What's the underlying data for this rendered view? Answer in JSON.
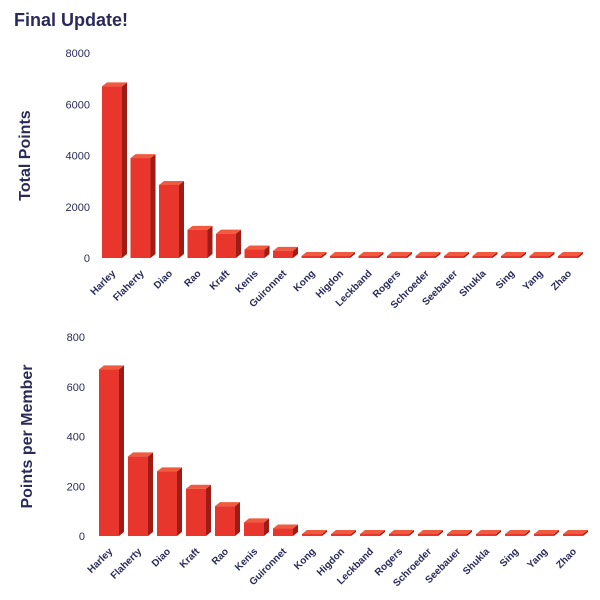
{
  "title": "Final Update!",
  "chart_data": [
    {
      "type": "bar",
      "ylabel": "Total Points",
      "ylim": [
        0,
        8000
      ],
      "yticks": [
        0,
        2000,
        4000,
        6000,
        8000
      ],
      "categories": [
        "Harley",
        "Flaherty",
        "Diao",
        "Rao",
        "Kraft",
        "Kenis",
        "Guironnet",
        "Kong",
        "Higdon",
        "Leckband",
        "Rogers",
        "Schroeder",
        "Seebauer",
        "Shukla",
        "Sing",
        "Yang",
        "Zhao"
      ],
      "values": [
        6700,
        3900,
        2850,
        1100,
        950,
        330,
        280,
        40,
        0,
        0,
        0,
        0,
        0,
        0,
        0,
        0,
        0
      ],
      "color": "#e8362d"
    },
    {
      "type": "bar",
      "ylabel": "Points per Member",
      "ylim": [
        0,
        800
      ],
      "yticks": [
        0,
        200,
        400,
        600,
        800
      ],
      "categories": [
        "Harley",
        "Flaherty",
        "Diao",
        "Kraft",
        "Rao",
        "Kenis",
        "Guironnet",
        "Kong",
        "Higdon",
        "Leckband",
        "Rogers",
        "Schroeder",
        "Seebauer",
        "Shukla",
        "Sing",
        "Yang",
        "Zhao"
      ],
      "values": [
        670,
        320,
        260,
        190,
        120,
        55,
        30,
        4,
        0,
        0,
        0,
        0,
        0,
        0,
        0,
        0,
        0
      ],
      "color": "#e8362d"
    }
  ]
}
